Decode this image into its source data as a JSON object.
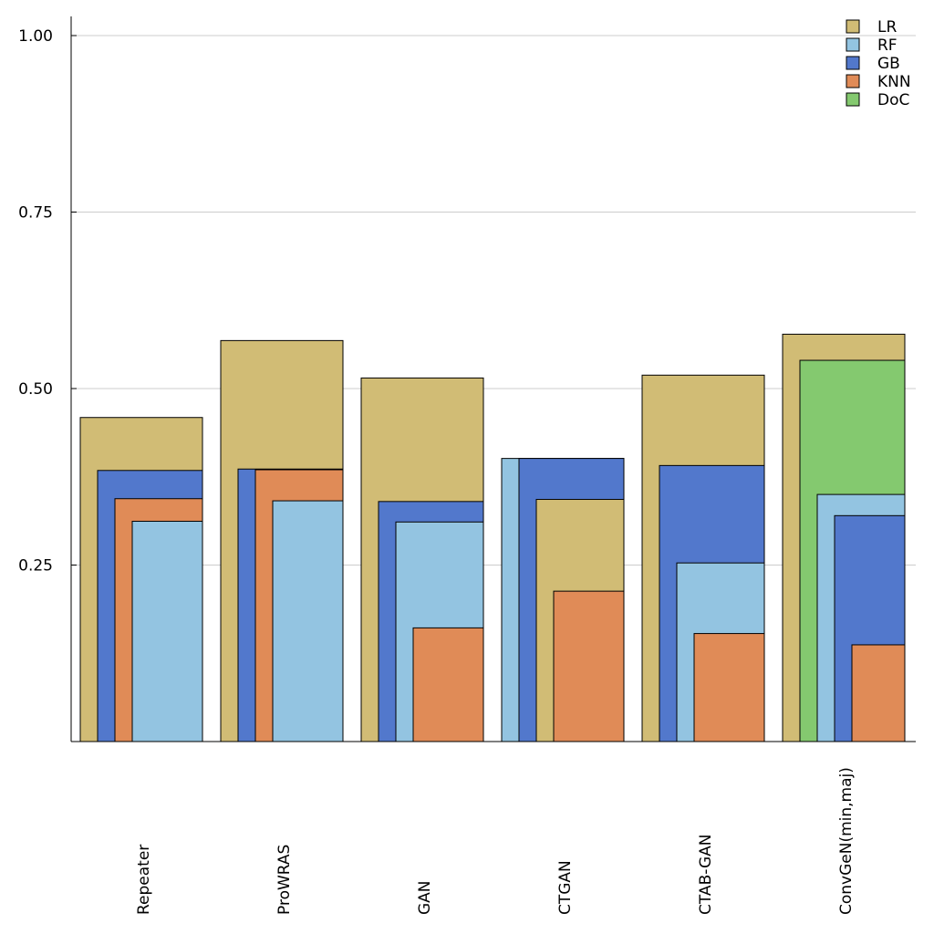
{
  "chart_data": {
    "type": "bar",
    "categories": [
      "Repeater",
      "ProWRAS",
      "GAN",
      "CTGAN",
      "CTAB-GAN",
      "ConvGeN(min,maj)"
    ],
    "series": [
      {
        "name": "LR",
        "color": "#d1bc75",
        "values": [
          0.459,
          0.568,
          0.515,
          0.343,
          0.519,
          0.577
        ]
      },
      {
        "name": "RF",
        "color": "#93c4e1",
        "values": [
          0.312,
          0.341,
          0.311,
          0.401,
          0.253,
          0.35
        ]
      },
      {
        "name": "GB",
        "color": "#5278cc",
        "values": [
          0.384,
          0.386,
          0.34,
          0.401,
          0.391,
          0.32
        ]
      },
      {
        "name": "KNN",
        "color": "#e08b57",
        "values": [
          0.344,
          0.385,
          0.161,
          0.213,
          0.153,
          0.137
        ]
      },
      {
        "name": "DoC",
        "color": "#84c96f",
        "values": [
          null,
          null,
          null,
          null,
          null,
          0.54
        ]
      }
    ],
    "xlabel": "",
    "ylabel": "",
    "ylim": [
      0,
      1.0
    ],
    "yticks": [
      0.25,
      0.5,
      0.75,
      1.0
    ],
    "ytick_labels": [
      "0.25",
      "0.50",
      "0.75",
      "1.00"
    ],
    "grid": "horizontal",
    "legend": "top-right",
    "orientation": "vertical"
  }
}
